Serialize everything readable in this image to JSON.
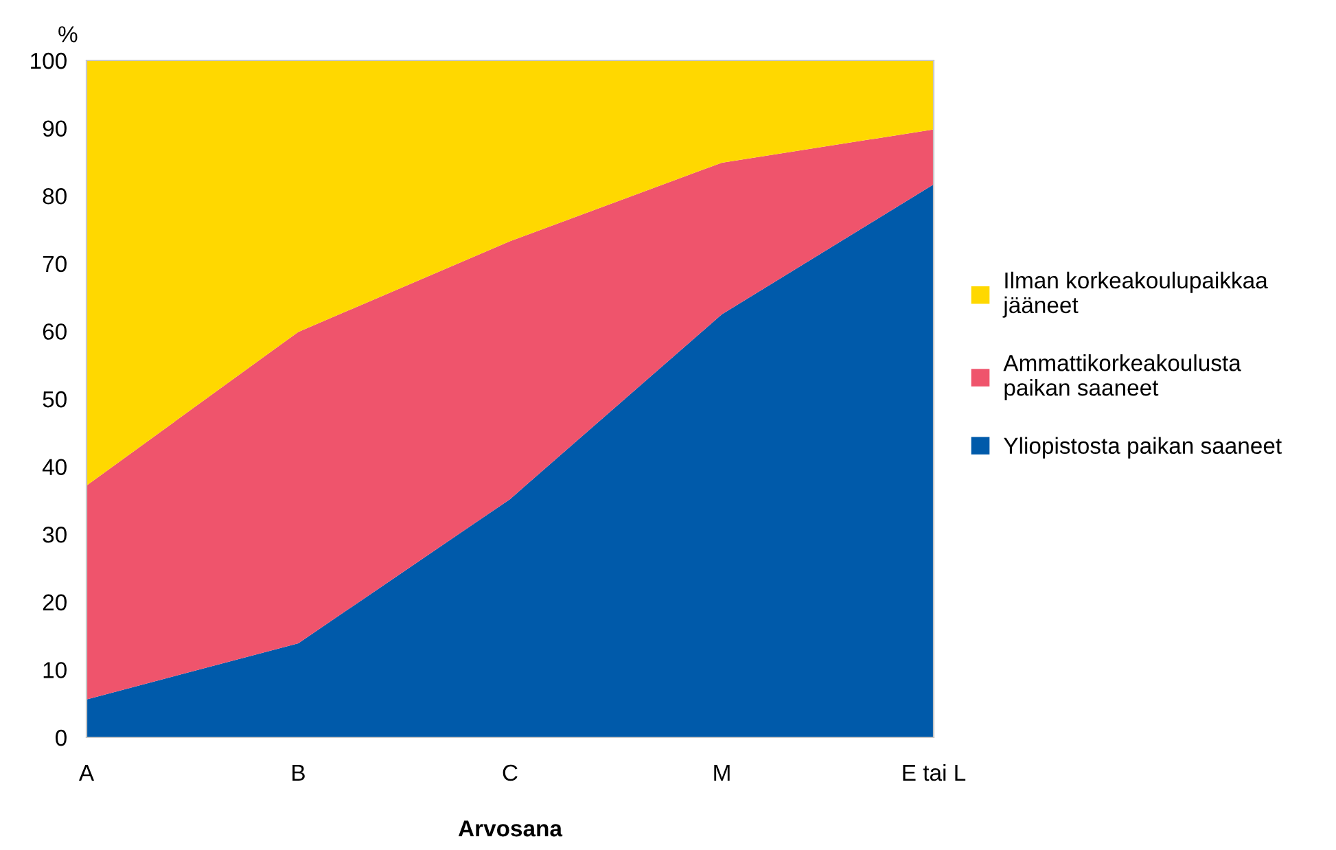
{
  "chart_data": {
    "type": "area",
    "stacked": true,
    "xlabel": "Arvosana",
    "ylabel": "%",
    "categories": [
      "A",
      "B",
      "C",
      "M",
      "E tai L"
    ],
    "series": [
      {
        "name": "Yliopistosta paikan saaneet",
        "color": "#005aaa",
        "values": [
          5.6,
          13.9,
          35.2,
          62.5,
          81.7
        ]
      },
      {
        "name": "Ammattikorkeakoulusta\npaikan saaneet",
        "color": "#ef546c",
        "values": [
          31.6,
          46.0,
          38.1,
          22.4,
          8.1
        ]
      },
      {
        "name": "Ilman korkeakoulupaikkaa\njääneet",
        "color": "#ffd800",
        "values": [
          62.8,
          40.1,
          26.7,
          15.1,
          10.2
        ]
      }
    ],
    "ylim": [
      0,
      100
    ],
    "yticks": [
      0,
      10,
      20,
      30,
      40,
      50,
      60,
      70,
      80,
      90,
      100
    ],
    "grid": false,
    "legend": "right"
  }
}
